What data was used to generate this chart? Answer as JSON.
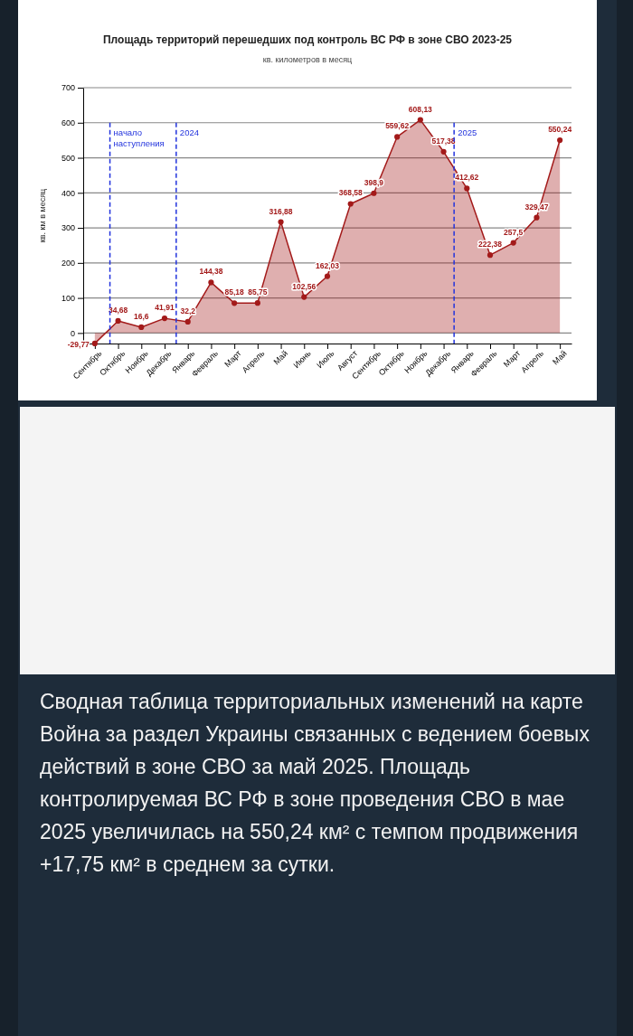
{
  "chart_data": {
    "type": "area",
    "title": "Площадь территорий перешедших под контроль ВС РФ в зоне СВО 2023-25",
    "subtitle": "кв. километров в месяц",
    "ylabel": "кв. км в месяц",
    "categories": [
      "Сентябрь",
      "Октябрь",
      "Ноябрь",
      "Декабрь",
      "Январь",
      "Февраль",
      "Март",
      "Апрель",
      "Май",
      "Июнь",
      "Июль",
      "Август",
      "Сентябрь",
      "Октябрь",
      "Ноябрь",
      "Декабрь",
      "Январь",
      "Февраль",
      "Март",
      "Апрель",
      "Май"
    ],
    "series": [
      {
        "color": "#a31a1a",
        "values": [
          -29.77,
          34.68,
          16.6,
          41.91,
          32.2,
          144.38,
          85.18,
          85.75,
          316.88,
          102.56,
          162.03,
          368.58,
          398.9,
          559.62,
          608.13,
          517.38,
          412.62,
          222.38,
          257.5,
          329.47,
          550.24
        ],
        "value_labels": [
          "-29,77",
          "34,68",
          "16,6",
          "41,91",
          "32,2",
          "144,38",
          "85,18",
          "85,75",
          "316,88",
          "102,56",
          "162,03",
          "368,58",
          "398,9",
          "559,62",
          "608,13",
          "517,38",
          "412,62",
          "222,38",
          "257,5",
          "329,47",
          "550,24"
        ]
      }
    ],
    "ylim": [
      -30,
      700
    ],
    "yticks": [
      0,
      100,
      200,
      300,
      400,
      500,
      600,
      700
    ],
    "grid": "y",
    "marker": "circle",
    "annotations": [
      "начало наступления",
      "2024",
      "2025",
      "Сводная таблица территориальных изменений на карте Война за раздел Украины связанных с ведением боевых действий в зоне СВО за май 2025. Площадь контролируемая ВС РФ в зоне проведения СВО в мае 2025 увеличилась на 550,24 км² с темпом продвижения +17,75 км² в среднем за сутки."
    ]
  }
}
